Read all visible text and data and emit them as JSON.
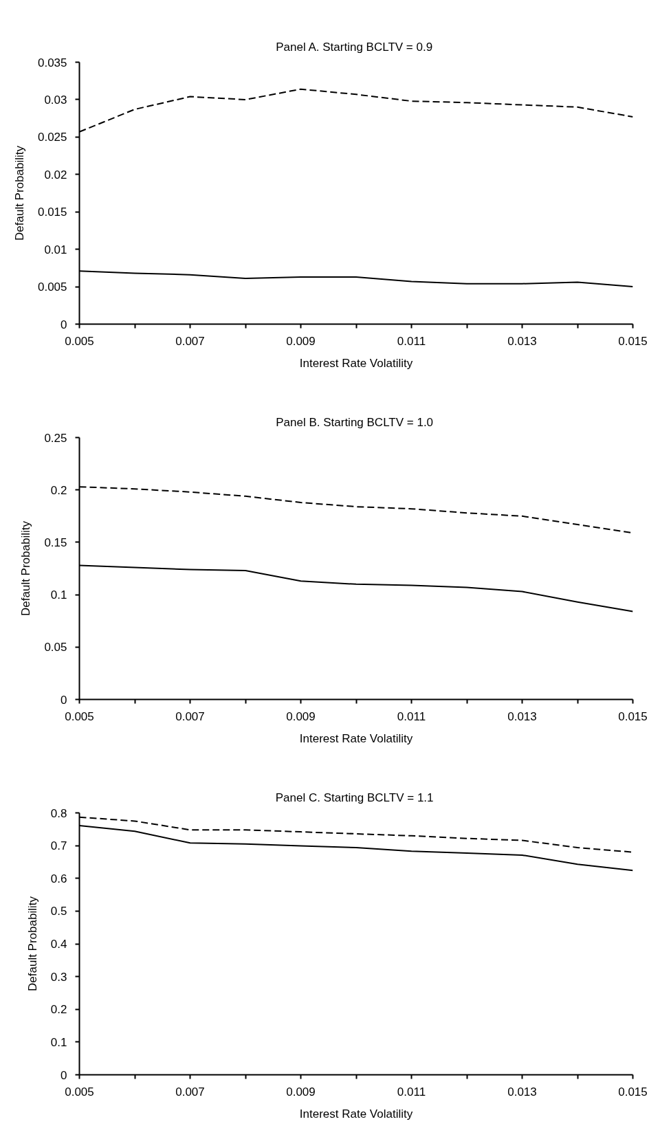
{
  "chart_data": [
    {
      "type": "line",
      "title": "Panel A.  Starting BCLTV = 0.9",
      "xlabel": "Interest Rate Volatility",
      "ylabel": "Default Probability",
      "x": [
        0.005,
        0.006,
        0.007,
        0.008,
        0.009,
        0.01,
        0.011,
        0.012,
        0.013,
        0.014,
        0.015
      ],
      "series": [
        {
          "color": "#000000",
          "line_style": "dashed",
          "values": [
            0.0257,
            0.0287,
            0.0304,
            0.03,
            0.0314,
            0.0307,
            0.0298,
            0.0296,
            0.0293,
            0.029,
            0.0277
          ]
        },
        {
          "color": "#000000",
          "line_style": "solid",
          "values": [
            0.0071,
            0.0068,
            0.0066,
            0.0061,
            0.0063,
            0.0063,
            0.0057,
            0.0054,
            0.0054,
            0.0056,
            0.005
          ]
        }
      ],
      "xlim": [
        0.005,
        0.015
      ],
      "ylim": [
        0,
        0.035
      ],
      "xticks": [
        0.005,
        {
          "value": 0.006,
          "label": null
        },
        0.007,
        {
          "value": 0.008,
          "label": null
        },
        0.009,
        {
          "value": 0.01,
          "label": null
        },
        0.011,
        {
          "value": 0.012,
          "label": null
        },
        0.013,
        {
          "value": 0.014,
          "label": null
        },
        0.015
      ],
      "yticks": [
        0,
        0.005,
        0.01,
        0.015,
        0.02,
        0.025,
        0.03,
        0.035
      ],
      "grid": false,
      "marker": "none"
    },
    {
      "type": "line",
      "title": "Panel B.  Starting BCLTV = 1.0",
      "xlabel": "Interest Rate Volatility",
      "ylabel": "Default Probability",
      "x": [
        0.005,
        0.006,
        0.007,
        0.008,
        0.009,
        0.01,
        0.011,
        0.012,
        0.013,
        0.014,
        0.015
      ],
      "series": [
        {
          "color": "#000000",
          "line_style": "dashed",
          "values": [
            0.203,
            0.201,
            0.198,
            0.194,
            0.188,
            0.184,
            0.182,
            0.178,
            0.175,
            0.167,
            0.159
          ]
        },
        {
          "color": "#000000",
          "line_style": "solid",
          "values": [
            0.128,
            0.126,
            0.124,
            0.123,
            0.113,
            0.11,
            0.109,
            0.107,
            0.103,
            0.093,
            0.084
          ]
        }
      ],
      "xlim": [
        0.005,
        0.015
      ],
      "ylim": [
        0,
        0.25
      ],
      "xticks": [
        0.005,
        {
          "value": 0.006,
          "label": null
        },
        0.007,
        {
          "value": 0.008,
          "label": null
        },
        0.009,
        {
          "value": 0.01,
          "label": null
        },
        0.011,
        {
          "value": 0.012,
          "label": null
        },
        0.013,
        {
          "value": 0.014,
          "label": null
        },
        0.015
      ],
      "yticks": [
        0,
        0.05,
        0.1,
        0.15,
        0.2,
        0.25
      ],
      "grid": false,
      "marker": "none"
    },
    {
      "type": "line",
      "title": "Panel C.  Starting BCLTV = 1.1",
      "xlabel": "Interest Rate Volatility",
      "ylabel": "Default Probability",
      "x": [
        0.005,
        0.006,
        0.007,
        0.008,
        0.009,
        0.01,
        0.011,
        0.012,
        0.013,
        0.014,
        0.015
      ],
      "series": [
        {
          "color": "#000000",
          "line_style": "dashed",
          "values": [
            0.787,
            0.775,
            0.748,
            0.748,
            0.742,
            0.736,
            0.73,
            0.722,
            0.716,
            0.694,
            0.68
          ]
        },
        {
          "color": "#000000",
          "line_style": "solid",
          "values": [
            0.761,
            0.744,
            0.708,
            0.705,
            0.699,
            0.694,
            0.683,
            0.677,
            0.671,
            0.643,
            0.624
          ]
        }
      ],
      "xlim": [
        0.005,
        0.015
      ],
      "ylim": [
        0,
        0.8
      ],
      "xticks": [
        0.005,
        {
          "value": 0.006,
          "label": null
        },
        0.007,
        {
          "value": 0.008,
          "label": null
        },
        0.009,
        {
          "value": 0.01,
          "label": null
        },
        0.011,
        {
          "value": 0.012,
          "label": null
        },
        0.013,
        {
          "value": 0.014,
          "label": null
        },
        0.015
      ],
      "yticks": [
        0,
        0.1,
        0.2,
        0.3,
        0.4,
        0.5,
        0.6,
        0.7,
        0.8
      ],
      "grid": false,
      "marker": "none"
    }
  ]
}
